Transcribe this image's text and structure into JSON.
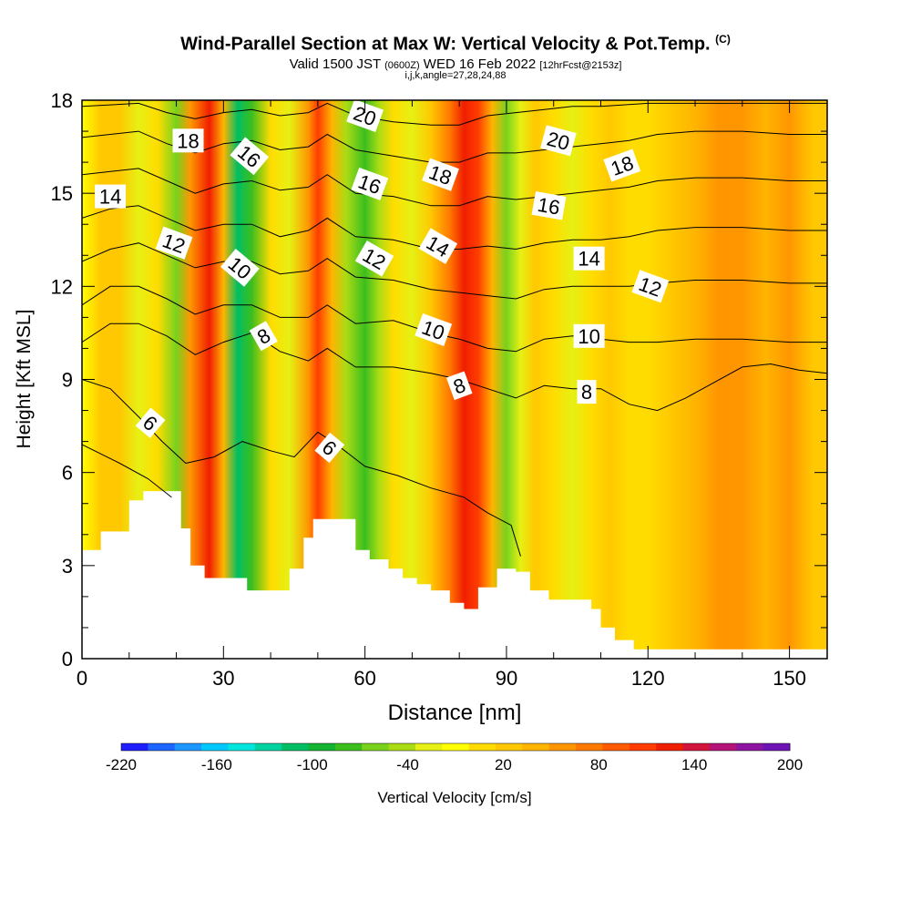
{
  "header": {
    "title": "Wind-Parallel Section at Max W: Vertical Velocity & Pot.Temp.",
    "title_suffix": "(C)",
    "valid_prefix": "Valid 1500 JST",
    "valid_utc": "(0600Z)",
    "valid_date": "WED 16 Feb 2022",
    "forecast_note": "[12hrFcst@2153z]",
    "grid_note": "i,j,k,angle=27,28,24,88"
  },
  "chart_data": {
    "type": "heatmap",
    "xlabel": "Distance [nm]",
    "ylabel": "Height [Kft MSL]",
    "xlim": [
      0,
      158
    ],
    "ylim": [
      0,
      18
    ],
    "x_ticks": [
      0,
      30,
      60,
      90,
      120,
      150
    ],
    "y_ticks": [
      0,
      3,
      6,
      9,
      12,
      15,
      18
    ],
    "colorbar": {
      "label": "Vertical Velocity [cm/s]",
      "range": [
        -220,
        200
      ],
      "tick_labels": [
        -220,
        -160,
        -100,
        -40,
        20,
        80,
        140,
        200
      ],
      "colors": [
        "#1e1eff",
        "#1e64ff",
        "#1e96ff",
        "#00c8ff",
        "#00e6dc",
        "#00d2a0",
        "#00be64",
        "#14b432",
        "#3cbe1e",
        "#78d21e",
        "#aadc14",
        "#e6f014",
        "#ffff00",
        "#ffdc00",
        "#ffc800",
        "#ffb400",
        "#ff9600",
        "#ff7800",
        "#ff5a00",
        "#ff3c00",
        "#f01e00",
        "#d2143c",
        "#b41478",
        "#8c14a0",
        "#6e14b4"
      ]
    },
    "velocity_bands": [
      {
        "x": 0,
        "w": -10
      },
      {
        "x": 4,
        "w": 30
      },
      {
        "x": 8,
        "w": 20
      },
      {
        "x": 12,
        "w": -20
      },
      {
        "x": 16,
        "w": 10
      },
      {
        "x": 20,
        "w": -60
      },
      {
        "x": 23,
        "w": 60
      },
      {
        "x": 27,
        "w": 130
      },
      {
        "x": 30,
        "w": 40
      },
      {
        "x": 33,
        "w": -110
      },
      {
        "x": 36,
        "w": -70
      },
      {
        "x": 40,
        "w": 0
      },
      {
        "x": 44,
        "w": -30
      },
      {
        "x": 48,
        "w": 60
      },
      {
        "x": 50,
        "w": 100
      },
      {
        "x": 53,
        "w": 40
      },
      {
        "x": 56,
        "w": -40
      },
      {
        "x": 60,
        "w": -70
      },
      {
        "x": 63,
        "w": -40
      },
      {
        "x": 66,
        "w": 10
      },
      {
        "x": 70,
        "w": -30
      },
      {
        "x": 74,
        "w": 20
      },
      {
        "x": 78,
        "w": 70
      },
      {
        "x": 81,
        "w": 130
      },
      {
        "x": 84,
        "w": 110
      },
      {
        "x": 87,
        "w": 40
      },
      {
        "x": 90,
        "w": -60
      },
      {
        "x": 93,
        "w": -20
      },
      {
        "x": 96,
        "w": 20
      },
      {
        "x": 100,
        "w": 10
      },
      {
        "x": 104,
        "w": -30
      },
      {
        "x": 108,
        "w": 10
      },
      {
        "x": 112,
        "w": 30
      },
      {
        "x": 116,
        "w": 0
      },
      {
        "x": 120,
        "w": 10
      },
      {
        "x": 125,
        "w": 30
      },
      {
        "x": 130,
        "w": 40
      },
      {
        "x": 135,
        "w": 60
      },
      {
        "x": 140,
        "w": 50
      },
      {
        "x": 145,
        "w": 40
      },
      {
        "x": 150,
        "w": 50
      },
      {
        "x": 155,
        "w": 30
      },
      {
        "x": 158,
        "w": 20
      }
    ],
    "terrain_profile": [
      [
        0,
        3.5
      ],
      [
        4,
        4.1
      ],
      [
        10,
        5.1
      ],
      [
        13,
        5.4
      ],
      [
        19,
        5.4
      ],
      [
        21,
        4.2
      ],
      [
        23,
        3.0
      ],
      [
        26,
        2.6
      ],
      [
        31,
        2.6
      ],
      [
        35,
        2.2
      ],
      [
        41,
        2.2
      ],
      [
        44,
        2.9
      ],
      [
        47,
        3.9
      ],
      [
        49,
        4.5
      ],
      [
        55,
        4.5
      ],
      [
        58,
        3.5
      ],
      [
        61,
        3.2
      ],
      [
        65,
        2.9
      ],
      [
        68,
        2.6
      ],
      [
        71,
        2.4
      ],
      [
        74,
        2.2
      ],
      [
        78,
        1.8
      ],
      [
        81,
        1.6
      ],
      [
        84,
        2.3
      ],
      [
        88,
        2.9
      ],
      [
        92,
        2.8
      ],
      [
        95,
        2.2
      ],
      [
        99,
        1.9
      ],
      [
        104,
        1.9
      ],
      [
        108,
        1.6
      ],
      [
        110,
        1.0
      ],
      [
        113,
        0.6
      ],
      [
        117,
        0.3
      ],
      [
        120,
        0.3
      ],
      [
        158,
        0.3
      ]
    ],
    "isentropes": [
      {
        "theta": 6,
        "points": [
          [
            0,
            6.9
          ],
          [
            8,
            6.3
          ],
          [
            14,
            5.8
          ],
          [
            19,
            5.2
          ]
        ]
      },
      {
        "theta": 6,
        "points": [
          [
            0,
            9.0
          ],
          [
            6,
            8.7
          ],
          [
            12,
            7.8
          ],
          [
            17,
            7.0
          ],
          [
            22,
            6.3
          ],
          [
            28,
            6.5
          ],
          [
            34,
            7.0
          ],
          [
            40,
            6.7
          ],
          [
            45,
            6.5
          ],
          [
            50,
            7.3
          ],
          [
            54,
            6.9
          ],
          [
            60,
            6.2
          ],
          [
            67,
            5.9
          ],
          [
            74,
            5.5
          ],
          [
            81,
            5.2
          ],
          [
            86,
            4.7
          ],
          [
            91,
            4.3
          ],
          [
            93,
            3.3
          ]
        ]
      },
      {
        "theta": 8,
        "points": [
          [
            0,
            10.2
          ],
          [
            6,
            10.8
          ],
          [
            12,
            10.8
          ],
          [
            18,
            10.4
          ],
          [
            24,
            9.8
          ],
          [
            30,
            10.2
          ],
          [
            36,
            10.5
          ],
          [
            42,
            9.9
          ],
          [
            48,
            9.6
          ],
          [
            52,
            10.0
          ],
          [
            58,
            9.4
          ],
          [
            66,
            9.4
          ],
          [
            74,
            9.2
          ],
          [
            80,
            9.0
          ],
          [
            86,
            8.7
          ],
          [
            92,
            8.4
          ],
          [
            98,
            8.8
          ],
          [
            104,
            8.7
          ],
          [
            110,
            8.7
          ],
          [
            116,
            8.2
          ],
          [
            122,
            8.0
          ],
          [
            128,
            8.4
          ],
          [
            134,
            8.9
          ],
          [
            140,
            9.4
          ],
          [
            146,
            9.5
          ],
          [
            152,
            9.3
          ],
          [
            158,
            9.2
          ]
        ]
      },
      {
        "theta": 10,
        "points": [
          [
            0,
            11.4
          ],
          [
            6,
            12.0
          ],
          [
            12,
            12.0
          ],
          [
            18,
            11.6
          ],
          [
            24,
            11.1
          ],
          [
            30,
            11.4
          ],
          [
            36,
            11.4
          ],
          [
            42,
            11.0
          ],
          [
            48,
            11.0
          ],
          [
            52,
            11.4
          ],
          [
            58,
            10.8
          ],
          [
            66,
            10.9
          ],
          [
            74,
            10.5
          ],
          [
            80,
            10.3
          ],
          [
            86,
            10.0
          ],
          [
            92,
            9.9
          ],
          [
            98,
            10.3
          ],
          [
            104,
            10.4
          ],
          [
            110,
            10.3
          ],
          [
            116,
            10.2
          ],
          [
            122,
            10.2
          ],
          [
            130,
            10.3
          ],
          [
            140,
            10.3
          ],
          [
            150,
            10.2
          ],
          [
            158,
            10.2
          ]
        ]
      },
      {
        "theta": 12,
        "points": [
          [
            0,
            12.8
          ],
          [
            6,
            13.2
          ],
          [
            12,
            13.4
          ],
          [
            18,
            13.0
          ],
          [
            24,
            12.6
          ],
          [
            30,
            12.8
          ],
          [
            36,
            12.8
          ],
          [
            42,
            12.4
          ],
          [
            48,
            12.5
          ],
          [
            52,
            12.9
          ],
          [
            58,
            12.3
          ],
          [
            66,
            12.2
          ],
          [
            74,
            11.9
          ],
          [
            80,
            11.8
          ],
          [
            86,
            11.7
          ],
          [
            92,
            11.6
          ],
          [
            98,
            11.9
          ],
          [
            104,
            12.0
          ],
          [
            110,
            12.0
          ],
          [
            116,
            12.0
          ],
          [
            122,
            12.1
          ],
          [
            130,
            12.2
          ],
          [
            140,
            12.2
          ],
          [
            150,
            12.1
          ],
          [
            158,
            12.1
          ]
        ]
      },
      {
        "theta": 14,
        "points": [
          [
            0,
            14.2
          ],
          [
            6,
            14.5
          ],
          [
            12,
            14.6
          ],
          [
            18,
            14.2
          ],
          [
            24,
            13.8
          ],
          [
            30,
            14.0
          ],
          [
            36,
            14.0
          ],
          [
            42,
            13.6
          ],
          [
            48,
            13.8
          ],
          [
            52,
            14.2
          ],
          [
            58,
            13.6
          ],
          [
            66,
            13.5
          ],
          [
            74,
            13.2
          ],
          [
            80,
            13.2
          ],
          [
            86,
            13.3
          ],
          [
            92,
            13.2
          ],
          [
            98,
            13.4
          ],
          [
            104,
            13.5
          ],
          [
            110,
            13.5
          ],
          [
            116,
            13.6
          ],
          [
            122,
            13.8
          ],
          [
            130,
            13.9
          ],
          [
            140,
            13.9
          ],
          [
            150,
            13.8
          ],
          [
            158,
            13.8
          ]
        ]
      },
      {
        "theta": 16,
        "points": [
          [
            0,
            15.6
          ],
          [
            6,
            15.7
          ],
          [
            12,
            15.8
          ],
          [
            18,
            15.4
          ],
          [
            24,
            15.0
          ],
          [
            30,
            15.3
          ],
          [
            36,
            15.4
          ],
          [
            42,
            15.1
          ],
          [
            48,
            15.2
          ],
          [
            52,
            15.6
          ],
          [
            58,
            15.0
          ],
          [
            66,
            14.9
          ],
          [
            74,
            14.6
          ],
          [
            80,
            14.6
          ],
          [
            86,
            14.9
          ],
          [
            92,
            14.8
          ],
          [
            98,
            14.9
          ],
          [
            104,
            15.0
          ],
          [
            110,
            15.1
          ],
          [
            116,
            15.2
          ],
          [
            122,
            15.4
          ],
          [
            130,
            15.5
          ],
          [
            140,
            15.5
          ],
          [
            150,
            15.4
          ],
          [
            158,
            15.4
          ]
        ]
      },
      {
        "theta": 18,
        "points": [
          [
            0,
            16.8
          ],
          [
            6,
            16.9
          ],
          [
            12,
            17.0
          ],
          [
            18,
            16.6
          ],
          [
            24,
            16.3
          ],
          [
            30,
            16.6
          ],
          [
            36,
            16.7
          ],
          [
            42,
            16.4
          ],
          [
            48,
            16.5
          ],
          [
            52,
            16.9
          ],
          [
            58,
            16.4
          ],
          [
            66,
            16.2
          ],
          [
            74,
            16.0
          ],
          [
            80,
            16.0
          ],
          [
            86,
            16.3
          ],
          [
            92,
            16.3
          ],
          [
            98,
            16.4
          ],
          [
            104,
            16.5
          ],
          [
            110,
            16.6
          ],
          [
            116,
            16.7
          ],
          [
            122,
            16.9
          ],
          [
            130,
            17.0
          ],
          [
            140,
            17.0
          ],
          [
            150,
            16.9
          ],
          [
            158,
            16.9
          ]
        ]
      },
      {
        "theta": 20,
        "points": [
          [
            0,
            17.8
          ],
          [
            12,
            17.9
          ],
          [
            18,
            17.6
          ],
          [
            24,
            17.4
          ],
          [
            30,
            17.6
          ],
          [
            36,
            17.7
          ],
          [
            42,
            17.5
          ],
          [
            48,
            17.6
          ],
          [
            52,
            17.9
          ],
          [
            58,
            17.5
          ],
          [
            66,
            17.3
          ],
          [
            74,
            17.2
          ],
          [
            80,
            17.2
          ],
          [
            86,
            17.5
          ],
          [
            92,
            17.6
          ],
          [
            98,
            17.7
          ],
          [
            104,
            17.8
          ],
          [
            110,
            17.8
          ],
          [
            120,
            17.9
          ],
          [
            158,
            17.9
          ]
        ]
      }
    ],
    "contour_labels": [
      {
        "text": "14",
        "x": 6,
        "y": 14.9,
        "angle": 0
      },
      {
        "text": "18",
        "x": 22.5,
        "y": 16.7,
        "angle": 0
      },
      {
        "text": "12",
        "x": 19.5,
        "y": 13.4,
        "angle": 20
      },
      {
        "text": "16",
        "x": 35.5,
        "y": 16.2,
        "angle": 40
      },
      {
        "text": "10",
        "x": 33.5,
        "y": 12.6,
        "angle": 40
      },
      {
        "text": "8",
        "x": 38.5,
        "y": 10.4,
        "angle": -30
      },
      {
        "text": "6",
        "x": 14.5,
        "y": 7.6,
        "angle": 40
      },
      {
        "text": "20",
        "x": 60,
        "y": 17.5,
        "angle": 20
      },
      {
        "text": "16",
        "x": 61,
        "y": 15.3,
        "angle": 20
      },
      {
        "text": "12",
        "x": 62,
        "y": 12.9,
        "angle": 30
      },
      {
        "text": "6",
        "x": 52.5,
        "y": 6.8,
        "angle": 40
      },
      {
        "text": "18",
        "x": 76,
        "y": 15.6,
        "angle": 20
      },
      {
        "text": "14",
        "x": 75.5,
        "y": 13.3,
        "angle": 30
      },
      {
        "text": "10",
        "x": 74.5,
        "y": 10.6,
        "angle": 20
      },
      {
        "text": "8",
        "x": 80,
        "y": 8.8,
        "angle": -20
      },
      {
        "text": "20",
        "x": 101,
        "y": 16.7,
        "angle": 15
      },
      {
        "text": "16",
        "x": 99,
        "y": 14.6,
        "angle": 10
      },
      {
        "text": "18",
        "x": 114.5,
        "y": 15.9,
        "angle": -20
      },
      {
        "text": "14",
        "x": 107.5,
        "y": 12.9,
        "angle": 0
      },
      {
        "text": "12",
        "x": 120.5,
        "y": 12.0,
        "angle": 20
      },
      {
        "text": "10",
        "x": 107.5,
        "y": 10.4,
        "angle": 0
      },
      {
        "text": "8",
        "x": 107,
        "y": 8.6,
        "angle": 0
      }
    ]
  }
}
